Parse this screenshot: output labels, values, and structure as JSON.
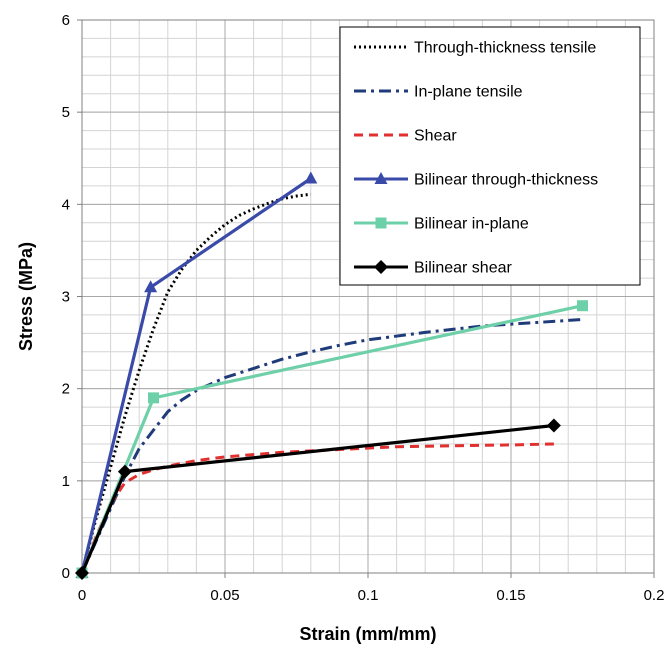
{
  "chart_data": {
    "type": "line",
    "title": "",
    "xlabel": "Strain (mm/mm)",
    "ylabel": "Stress (MPa)",
    "xlim": [
      0,
      0.2
    ],
    "ylim": [
      0,
      6
    ],
    "x_ticks": [
      {
        "value": 0,
        "label": "0"
      },
      {
        "value": 0.05,
        "label": "0.05"
      },
      {
        "value": 0.1,
        "label": "0.1"
      },
      {
        "value": 0.15,
        "label": "0.15"
      },
      {
        "value": 0.2,
        "label": "0.2"
      }
    ],
    "y_ticks": [
      {
        "value": 0,
        "label": "0"
      },
      {
        "value": 1,
        "label": "1"
      },
      {
        "value": 2,
        "label": "2"
      },
      {
        "value": 3,
        "label": "3"
      },
      {
        "value": 4,
        "label": "4"
      },
      {
        "value": 5,
        "label": "5"
      },
      {
        "value": 6,
        "label": "6"
      }
    ],
    "minor_x_step": 0.01,
    "minor_y_step": 0.2,
    "grid": true,
    "legend_position": "top-right",
    "series": [
      {
        "name": "Through-thickness tensile",
        "color": "#000000",
        "dash": "dotted",
        "marker": "none",
        "points": [
          [
            0,
            0
          ],
          [
            0.005,
            0.6
          ],
          [
            0.01,
            1.15
          ],
          [
            0.015,
            1.7
          ],
          [
            0.02,
            2.2
          ],
          [
            0.025,
            2.65
          ],
          [
            0.03,
            3.05
          ],
          [
            0.035,
            3.3
          ],
          [
            0.04,
            3.5
          ],
          [
            0.045,
            3.65
          ],
          [
            0.05,
            3.78
          ],
          [
            0.055,
            3.88
          ],
          [
            0.06,
            3.95
          ],
          [
            0.065,
            4.01
          ],
          [
            0.07,
            4.06
          ],
          [
            0.075,
            4.09
          ],
          [
            0.08,
            4.11
          ]
        ]
      },
      {
        "name": "In-plane tensile",
        "color": "#1f3b7a",
        "dash": "dashdot",
        "marker": "none",
        "points": [
          [
            0,
            0
          ],
          [
            0.005,
            0.35
          ],
          [
            0.01,
            0.7
          ],
          [
            0.015,
            1.05
          ],
          [
            0.02,
            1.35
          ],
          [
            0.025,
            1.55
          ],
          [
            0.03,
            1.75
          ],
          [
            0.035,
            1.88
          ],
          [
            0.04,
            1.98
          ],
          [
            0.05,
            2.12
          ],
          [
            0.06,
            2.22
          ],
          [
            0.07,
            2.32
          ],
          [
            0.08,
            2.4
          ],
          [
            0.09,
            2.47
          ],
          [
            0.1,
            2.53
          ],
          [
            0.12,
            2.61
          ],
          [
            0.14,
            2.68
          ],
          [
            0.16,
            2.72
          ],
          [
            0.175,
            2.75
          ]
        ]
      },
      {
        "name": "Shear",
        "color": "#e03030",
        "dash": "dashed",
        "marker": "none",
        "points": [
          [
            0,
            0
          ],
          [
            0.005,
            0.4
          ],
          [
            0.01,
            0.75
          ],
          [
            0.015,
            0.98
          ],
          [
            0.02,
            1.07
          ],
          [
            0.025,
            1.12
          ],
          [
            0.03,
            1.16
          ],
          [
            0.04,
            1.22
          ],
          [
            0.05,
            1.26
          ],
          [
            0.07,
            1.31
          ],
          [
            0.09,
            1.34
          ],
          [
            0.11,
            1.37
          ],
          [
            0.13,
            1.38
          ],
          [
            0.15,
            1.39
          ],
          [
            0.165,
            1.4
          ]
        ]
      },
      {
        "name": "Bilinear through-thickness",
        "color": "#3a4aa8",
        "dash": "solid",
        "marker": "triangle",
        "points": [
          [
            0,
            0
          ],
          [
            0.024,
            3.1
          ],
          [
            0.08,
            4.28
          ]
        ]
      },
      {
        "name": "Bilinear in-plane",
        "color": "#6ed0a8",
        "dash": "solid",
        "marker": "square",
        "points": [
          [
            0,
            0
          ],
          [
            0.025,
            1.9
          ],
          [
            0.175,
            2.9
          ]
        ]
      },
      {
        "name": "Bilinear shear",
        "color": "#000000",
        "dash": "solid",
        "marker": "diamond",
        "points": [
          [
            0,
            0
          ],
          [
            0.015,
            1.1
          ],
          [
            0.165,
            1.6
          ]
        ]
      }
    ]
  }
}
